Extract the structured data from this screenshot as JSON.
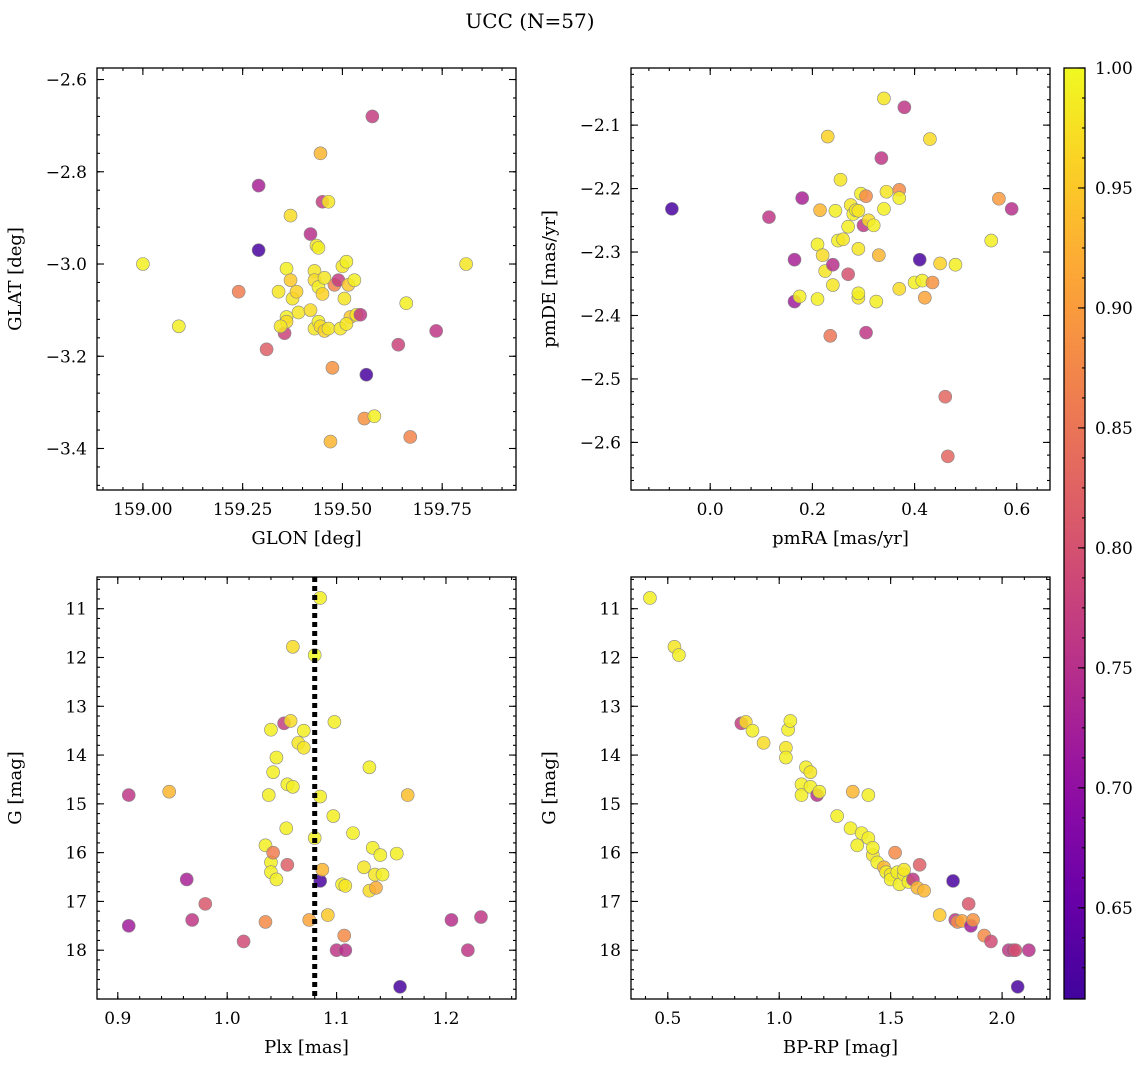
{
  "figure": {
    "title": "UCC (N=57)"
  },
  "colorbar": {
    "colormap": "plasma",
    "range": [
      0.612,
      1.0
    ],
    "ticks": [
      0.65,
      0.7,
      0.75,
      0.8,
      0.85,
      0.9,
      0.95,
      1.0
    ],
    "tick_labels": [
      "0.65",
      "0.70",
      "0.75",
      "0.80",
      "0.85",
      "0.90",
      "0.95",
      "1.00"
    ]
  },
  "chart_data": [
    {
      "id": "glon-glat",
      "type": "scatter",
      "xlabel": "GLON [deg]",
      "ylabel": "GLAT [deg]",
      "xlim": [
        158.885,
        159.935
      ],
      "ylim": [
        -3.49,
        -2.575
      ],
      "y_inverted": false,
      "xticks": [
        159.0,
        159.25,
        159.5,
        159.75
      ],
      "xtick_labels": [
        "159.00",
        "159.25",
        "159.50",
        "159.75"
      ],
      "yticks": [
        -2.6,
        -2.8,
        -3.0,
        -3.2,
        -3.4
      ],
      "ytick_labels": [
        "−2.6",
        "−2.8",
        "−3.0",
        "−3.2",
        "−3.4"
      ],
      "points": [
        [
          159.0,
          -3.0,
          0.99
        ],
        [
          159.09,
          -3.135,
          0.99
        ],
        [
          159.24,
          -3.06,
          0.86
        ],
        [
          159.29,
          -2.83,
          0.73
        ],
        [
          159.29,
          -2.97,
          0.62
        ],
        [
          159.31,
          -3.185,
          0.82
        ],
        [
          159.34,
          -3.06,
          0.98
        ],
        [
          159.355,
          -3.15,
          0.78
        ],
        [
          159.36,
          -3.01,
          0.99
        ],
        [
          159.37,
          -2.895,
          0.97
        ],
        [
          159.37,
          -3.035,
          0.95
        ],
        [
          159.375,
          -3.075,
          0.98
        ],
        [
          159.385,
          -3.06,
          0.96
        ],
        [
          159.39,
          -3.105,
          0.98
        ],
        [
          159.36,
          -3.115,
          0.99
        ],
        [
          159.36,
          -3.125,
          0.97
        ],
        [
          159.345,
          -3.135,
          0.98
        ],
        [
          159.42,
          -2.935,
          0.75
        ],
        [
          159.435,
          -2.96,
          0.98
        ],
        [
          159.44,
          -2.965,
          0.99
        ],
        [
          159.445,
          -2.76,
          0.93
        ],
        [
          159.45,
          -2.865,
          0.77
        ],
        [
          159.465,
          -2.865,
          0.98
        ],
        [
          159.43,
          -3.015,
          0.98
        ],
        [
          159.43,
          -3.035,
          0.97
        ],
        [
          159.44,
          -3.05,
          0.99
        ],
        [
          159.45,
          -3.065,
          0.96
        ],
        [
          159.43,
          -3.14,
          0.98
        ],
        [
          159.44,
          -3.125,
          0.99
        ],
        [
          159.445,
          -3.135,
          0.97
        ],
        [
          159.455,
          -3.145,
          0.96
        ],
        [
          159.465,
          -3.14,
          0.98
        ],
        [
          159.475,
          -3.225,
          0.89
        ],
        [
          159.47,
          -3.385,
          0.93
        ],
        [
          159.48,
          -3.045,
          0.87
        ],
        [
          159.49,
          -3.035,
          0.77
        ],
        [
          159.495,
          -3.14,
          0.98
        ],
        [
          159.5,
          -3.005,
          0.98
        ],
        [
          159.51,
          -2.995,
          0.99
        ],
        [
          159.505,
          -3.075,
          0.98
        ],
        [
          159.515,
          -3.045,
          0.95
        ],
        [
          159.52,
          -3.115,
          0.95
        ],
        [
          159.53,
          -3.035,
          0.99
        ],
        [
          159.535,
          -3.11,
          0.98
        ],
        [
          159.545,
          -3.11,
          0.76
        ],
        [
          159.555,
          -3.335,
          0.89
        ],
        [
          159.56,
          -3.24,
          0.62
        ],
        [
          159.575,
          -2.68,
          0.77
        ],
        [
          159.58,
          -3.33,
          0.99
        ],
        [
          159.64,
          -3.175,
          0.78
        ],
        [
          159.66,
          -3.085,
          0.99
        ],
        [
          159.67,
          -3.375,
          0.87
        ],
        [
          159.735,
          -3.145,
          0.76
        ],
        [
          159.81,
          -3.0,
          0.98
        ],
        [
          159.42,
          -3.1,
          0.97
        ],
        [
          159.455,
          -3.03,
          0.98
        ],
        [
          159.51,
          -3.13,
          0.98
        ]
      ]
    },
    {
      "id": "pmra-pmde",
      "type": "scatter",
      "xlabel": "pmRA [mas/yr]",
      "ylabel": "pmDE [mas/yr]",
      "xlim": [
        -0.155,
        0.665
      ],
      "ylim": [
        -2.675,
        -2.01
      ],
      "y_inverted": false,
      "xticks": [
        0.0,
        0.2,
        0.4,
        0.6
      ],
      "xtick_labels": [
        "0.0",
        "0.2",
        "0.4",
        "0.6"
      ],
      "yticks": [
        -2.1,
        -2.2,
        -2.3,
        -2.4,
        -2.5,
        -2.6
      ],
      "ytick_labels": [
        "−2.1",
        "−2.2",
        "−2.3",
        "−2.4",
        "−2.5",
        "−2.6"
      ],
      "points": [
        [
          -0.075,
          -2.232,
          0.62
        ],
        [
          0.115,
          -2.245,
          0.76
        ],
        [
          0.165,
          -2.312,
          0.73
        ],
        [
          0.165,
          -2.378,
          0.72
        ],
        [
          0.175,
          -2.37,
          0.99
        ],
        [
          0.18,
          -2.215,
          0.73
        ],
        [
          0.21,
          -2.288,
          0.99
        ],
        [
          0.21,
          -2.374,
          0.99
        ],
        [
          0.215,
          -2.234,
          0.93
        ],
        [
          0.22,
          -2.305,
          0.97
        ],
        [
          0.225,
          -2.33,
          0.98
        ],
        [
          0.23,
          -2.118,
          0.96
        ],
        [
          0.235,
          -2.432,
          0.85
        ],
        [
          0.24,
          -2.352,
          0.98
        ],
        [
          0.24,
          -2.32,
          0.75
        ],
        [
          0.245,
          -2.235,
          0.99
        ],
        [
          0.25,
          -2.282,
          0.99
        ],
        [
          0.255,
          -2.186,
          0.98
        ],
        [
          0.26,
          -2.28,
          0.98
        ],
        [
          0.27,
          -2.26,
          0.99
        ],
        [
          0.27,
          -2.335,
          0.8
        ],
        [
          0.275,
          -2.226,
          0.98
        ],
        [
          0.28,
          -2.24,
          0.99
        ],
        [
          0.285,
          -2.234,
          0.98
        ],
        [
          0.29,
          -2.295,
          0.98
        ],
        [
          0.29,
          -2.372,
          0.98
        ],
        [
          0.29,
          -2.365,
          0.99
        ],
        [
          0.29,
          -2.235,
          0.98
        ],
        [
          0.295,
          -2.208,
          0.99
        ],
        [
          0.3,
          -2.258,
          0.76
        ],
        [
          0.305,
          -2.427,
          0.76
        ],
        [
          0.305,
          -2.212,
          0.88
        ],
        [
          0.31,
          -2.25,
          0.97
        ],
        [
          0.32,
          -2.258,
          0.99
        ],
        [
          0.325,
          -2.378,
          0.99
        ],
        [
          0.33,
          -2.305,
          0.93
        ],
        [
          0.335,
          -2.152,
          0.76
        ],
        [
          0.34,
          -2.058,
          0.98
        ],
        [
          0.34,
          -2.232,
          0.99
        ],
        [
          0.345,
          -2.205,
          0.98
        ],
        [
          0.37,
          -2.202,
          0.88
        ],
        [
          0.37,
          -2.215,
          0.99
        ],
        [
          0.37,
          -2.358,
          0.97
        ],
        [
          0.38,
          -2.072,
          0.76
        ],
        [
          0.4,
          -2.348,
          0.99
        ],
        [
          0.41,
          -2.312,
          0.62
        ],
        [
          0.415,
          -2.345,
          0.99
        ],
        [
          0.42,
          -2.372,
          0.91
        ],
        [
          0.43,
          -2.122,
          0.97
        ],
        [
          0.435,
          -2.348,
          0.89
        ],
        [
          0.45,
          -2.318,
          0.96
        ],
        [
          0.46,
          -2.528,
          0.83
        ],
        [
          0.465,
          -2.622,
          0.83
        ],
        [
          0.48,
          -2.32,
          0.99
        ],
        [
          0.55,
          -2.282,
          0.99
        ],
        [
          0.565,
          -2.216,
          0.9
        ],
        [
          0.59,
          -2.232,
          0.75
        ]
      ]
    },
    {
      "id": "plx-g",
      "type": "scatter",
      "xlabel": "Plx [mas]",
      "ylabel": "G [mag]",
      "xlim": [
        0.881,
        1.264
      ],
      "ylim": [
        10.35,
        19.0
      ],
      "y_inverted": true,
      "vline": 1.08,
      "xticks": [
        0.9,
        1.0,
        1.1,
        1.2
      ],
      "xtick_labels": [
        "0.9",
        "1.0",
        "1.1",
        "1.2"
      ],
      "yticks": [
        11,
        12,
        13,
        14,
        15,
        16,
        17,
        18
      ],
      "ytick_labels": [
        "11",
        "12",
        "13",
        "14",
        "15",
        "16",
        "17",
        "18"
      ],
      "points": [
        [
          0.91,
          -14.82,
          0.76
        ],
        [
          0.91,
          -17.5,
          0.72
        ],
        [
          0.947,
          -14.75,
          0.93
        ],
        [
          0.963,
          -16.55,
          0.73
        ],
        [
          0.968,
          -17.38,
          0.76
        ],
        [
          0.98,
          -17.05,
          0.81
        ],
        [
          1.015,
          -17.82,
          0.79
        ],
        [
          1.035,
          -15.85,
          0.99
        ],
        [
          1.035,
          -17.42,
          0.88
        ],
        [
          1.038,
          -14.82,
          0.99
        ],
        [
          1.04,
          -13.48,
          0.99
        ],
        [
          1.04,
          -16.2,
          0.99
        ],
        [
          1.04,
          -16.4,
          0.99
        ],
        [
          1.042,
          -14.35,
          0.99
        ],
        [
          1.042,
          -16.0,
          0.86
        ],
        [
          1.045,
          -14.05,
          0.99
        ],
        [
          1.045,
          -16.55,
          0.99
        ],
        [
          1.052,
          -13.35,
          0.77
        ],
        [
          1.054,
          -15.5,
          0.99
        ],
        [
          1.055,
          -14.6,
          0.99
        ],
        [
          1.055,
          -16.25,
          0.82
        ],
        [
          1.058,
          -13.3,
          0.97
        ],
        [
          1.06,
          -11.78,
          0.97
        ],
        [
          1.06,
          -14.65,
          0.99
        ],
        [
          1.065,
          -13.75,
          0.98
        ],
        [
          1.07,
          -13.5,
          0.99
        ],
        [
          1.07,
          -13.85,
          0.98
        ],
        [
          1.075,
          -17.38,
          0.91
        ],
        [
          1.08,
          -11.95,
          1.0
        ],
        [
          1.08,
          -15.7,
          0.99
        ],
        [
          1.085,
          -10.78,
          0.99
        ],
        [
          1.085,
          -14.85,
          0.99
        ],
        [
          1.085,
          -16.58,
          0.62
        ],
        [
          1.087,
          -16.35,
          0.93
        ],
        [
          1.092,
          -17.28,
          0.95
        ],
        [
          1.097,
          -15.25,
          0.99
        ],
        [
          1.098,
          -13.32,
          0.99
        ],
        [
          1.1,
          -18.0,
          0.76
        ],
        [
          1.105,
          -16.65,
          0.99
        ],
        [
          1.107,
          -17.7,
          0.88
        ],
        [
          1.108,
          -18.0,
          0.75
        ],
        [
          1.108,
          -16.68,
          0.98
        ],
        [
          1.115,
          -15.6,
          0.99
        ],
        [
          1.125,
          -16.3,
          0.98
        ],
        [
          1.13,
          -14.25,
          0.99
        ],
        [
          1.13,
          -16.78,
          0.97
        ],
        [
          1.133,
          -15.9,
          0.99
        ],
        [
          1.135,
          -16.45,
          0.98
        ],
        [
          1.136,
          -16.72,
          0.92
        ],
        [
          1.14,
          -16.05,
          0.99
        ],
        [
          1.142,
          -16.45,
          0.99
        ],
        [
          1.155,
          -16.02,
          0.99
        ],
        [
          1.158,
          -18.75,
          0.62
        ],
        [
          1.165,
          -14.82,
          0.94
        ],
        [
          1.205,
          -17.38,
          0.75
        ],
        [
          1.22,
          -18.0,
          0.76
        ],
        [
          1.232,
          -17.32,
          0.76
        ]
      ]
    },
    {
      "id": "bprp-g",
      "type": "scatter",
      "xlabel": "BP-RP [mag]",
      "ylabel": "G [mag]",
      "xlim": [
        0.335,
        2.215
      ],
      "ylim": [
        10.35,
        19.0
      ],
      "y_inverted": true,
      "xticks": [
        0.5,
        1.0,
        1.5,
        2.0
      ],
      "xtick_labels": [
        "0.5",
        "1.0",
        "1.5",
        "2.0"
      ],
      "yticks": [
        11,
        12,
        13,
        14,
        15,
        16,
        17,
        18
      ],
      "ytick_labels": [
        "11",
        "12",
        "13",
        "14",
        "15",
        "16",
        "17",
        "18"
      ],
      "points": [
        [
          0.42,
          -10.78,
          0.99
        ],
        [
          0.53,
          -11.78,
          0.98
        ],
        [
          0.55,
          -11.95,
          0.99
        ],
        [
          0.83,
          -13.35,
          0.77
        ],
        [
          0.85,
          -13.32,
          0.97
        ],
        [
          0.88,
          -13.5,
          0.99
        ],
        [
          0.93,
          -13.75,
          0.97
        ],
        [
          1.03,
          -13.85,
          0.98
        ],
        [
          1.03,
          -14.05,
          0.99
        ],
        [
          1.04,
          -13.48,
          0.99
        ],
        [
          1.05,
          -13.3,
          0.99
        ],
        [
          1.1,
          -14.6,
          0.99
        ],
        [
          1.1,
          -14.82,
          0.99
        ],
        [
          1.12,
          -14.25,
          0.99
        ],
        [
          1.14,
          -14.35,
          0.98
        ],
        [
          1.14,
          -14.65,
          0.99
        ],
        [
          1.17,
          -14.82,
          0.75
        ],
        [
          1.18,
          -14.75,
          0.99
        ],
        [
          1.26,
          -15.25,
          0.99
        ],
        [
          1.32,
          -15.5,
          0.99
        ],
        [
          1.33,
          -14.75,
          0.93
        ],
        [
          1.35,
          -15.85,
          0.99
        ],
        [
          1.37,
          -15.6,
          0.99
        ],
        [
          1.4,
          -15.7,
          0.99
        ],
        [
          1.4,
          -14.82,
          0.99
        ],
        [
          1.42,
          -16.05,
          0.98
        ],
        [
          1.42,
          -15.9,
          0.99
        ],
        [
          1.44,
          -16.2,
          0.99
        ],
        [
          1.47,
          -16.3,
          0.93
        ],
        [
          1.48,
          -16.4,
          0.99
        ],
        [
          1.5,
          -16.45,
          0.98
        ],
        [
          1.5,
          -16.55,
          0.99
        ],
        [
          1.52,
          -16.0,
          0.88
        ],
        [
          1.53,
          -16.4,
          0.99
        ],
        [
          1.54,
          -16.65,
          0.99
        ],
        [
          1.56,
          -16.45,
          0.99
        ],
        [
          1.58,
          -16.6,
          0.99
        ],
        [
          1.6,
          -16.55,
          0.76
        ],
        [
          1.62,
          -16.72,
          0.93
        ],
        [
          1.63,
          -16.25,
          0.82
        ],
        [
          1.65,
          -16.78,
          0.93
        ],
        [
          1.72,
          -17.28,
          0.95
        ],
        [
          1.78,
          -16.58,
          0.62
        ],
        [
          1.79,
          -17.38,
          0.76
        ],
        [
          1.8,
          -17.42,
          0.88
        ],
        [
          1.82,
          -17.4,
          0.91
        ],
        [
          1.85,
          -17.05,
          0.81
        ],
        [
          1.86,
          -17.5,
          0.72
        ],
        [
          1.87,
          -17.38,
          0.89
        ],
        [
          1.92,
          -17.7,
          0.88
        ],
        [
          1.95,
          -17.82,
          0.79
        ],
        [
          2.03,
          -18.0,
          0.76
        ],
        [
          2.05,
          -18.0,
          0.76
        ],
        [
          2.06,
          -18.0,
          0.8
        ],
        [
          2.07,
          -18.75,
          0.62
        ],
        [
          2.12,
          -18.0,
          0.75
        ],
        [
          1.56,
          -16.35,
          0.98
        ]
      ]
    }
  ]
}
